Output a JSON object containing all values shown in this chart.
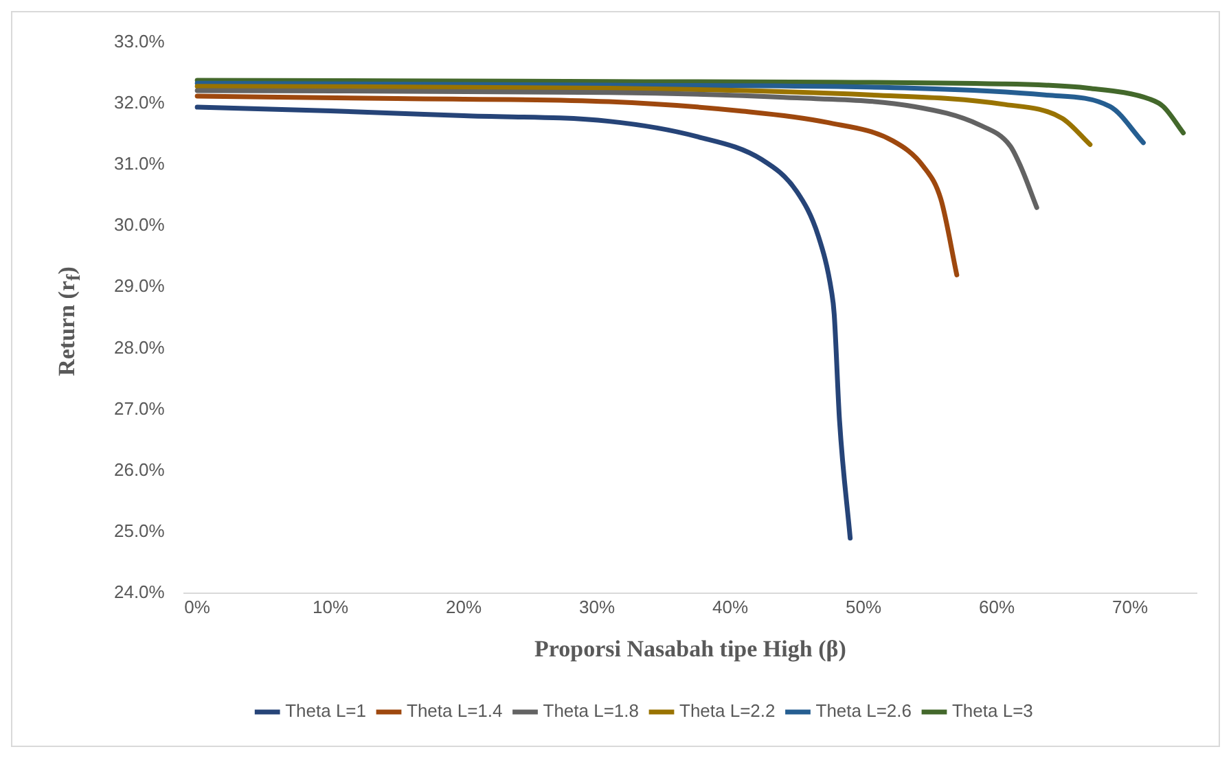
{
  "chart_data": {
    "type": "line",
    "xlabel": "Proporsi Nasabah tipe High (β)",
    "ylabel": "Return (r$_{f}$)",
    "xlim": [
      -1,
      75
    ],
    "xticks": [
      {
        "value": 0,
        "label": "0%"
      },
      {
        "value": 10,
        "label": "10%"
      },
      {
        "value": 20,
        "label": "20%"
      },
      {
        "value": 30,
        "label": "30%"
      },
      {
        "value": 40,
        "label": "40%"
      },
      {
        "value": 50,
        "label": "50%"
      },
      {
        "value": 60,
        "label": "60%"
      },
      {
        "value": 70,
        "label": "70%"
      }
    ],
    "ylim": [
      24,
      33
    ],
    "yticks": [
      {
        "value": 24,
        "label": "24.0%"
      },
      {
        "value": 25,
        "label": "25.0%"
      },
      {
        "value": 26,
        "label": "26.0%"
      },
      {
        "value": 27,
        "label": "27.0%"
      },
      {
        "value": 28,
        "label": "28.0%"
      },
      {
        "value": 29,
        "label": "29.0%"
      },
      {
        "value": 30,
        "label": "30.0%"
      },
      {
        "value": 31,
        "label": "31.0%"
      },
      {
        "value": 32,
        "label": "32.0%"
      },
      {
        "value": 33,
        "label": "33.0%"
      }
    ],
    "grid": false,
    "legend": "bottom",
    "marker": "none",
    "line_style": "solid",
    "series": [
      {
        "name": "Theta L=1",
        "color": "#264478",
        "x": [
          0,
          10,
          20,
          30.9,
          37.5,
          42.4,
          45,
          46.6,
          47.6,
          47.8,
          48.2,
          49
        ],
        "values": [
          31.94,
          31.88,
          31.8,
          31.71,
          31.46,
          31.08,
          30.56,
          29.84,
          28.93,
          28.56,
          26.82,
          24.9
        ]
      },
      {
        "name": "Theta L=1.4",
        "color": "#9e480e",
        "x": [
          0,
          15,
          30.9,
          40.7,
          47.3,
          52.2,
          54.5,
          55.8,
          57
        ],
        "values": [
          32.12,
          32.08,
          32.03,
          31.88,
          31.69,
          31.39,
          30.97,
          30.44,
          29.2
        ]
      },
      {
        "name": "Theta L=1.8",
        "color": "#636363",
        "x": [
          0,
          30.9,
          44,
          53.8,
          58.7,
          61,
          61.8,
          63
        ],
        "values": [
          32.21,
          32.18,
          32.1,
          31.95,
          31.65,
          31.31,
          30.97,
          30.3
        ]
      },
      {
        "name": "Theta L=2.2",
        "color": "#997300",
        "x": [
          0,
          30.9,
          50.5,
          60.4,
          64.9,
          67
        ],
        "values": [
          32.28,
          32.25,
          32.14,
          31.99,
          31.76,
          31.33
        ]
      },
      {
        "name": "Theta L=2.6",
        "color": "#255e91",
        "x": [
          0,
          30.9,
          53.8,
          63.6,
          68.5,
          71
        ],
        "values": [
          32.33,
          32.3,
          32.25,
          32.14,
          31.95,
          31.36
        ]
      },
      {
        "name": "Theta L=3",
        "color": "#43682b",
        "x": [
          0,
          30.9,
          60.4,
          66.9,
          71.5,
          72.5,
          74
        ],
        "values": [
          32.38,
          32.36,
          32.32,
          32.25,
          32.07,
          31.95,
          31.52
        ]
      }
    ]
  }
}
